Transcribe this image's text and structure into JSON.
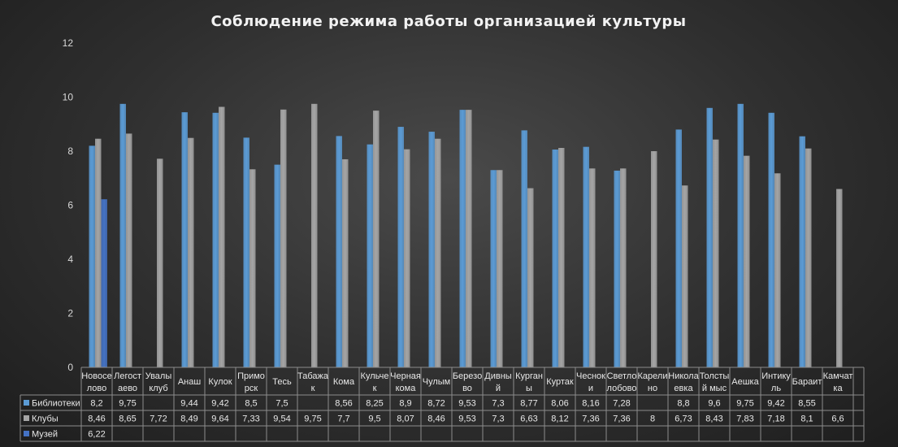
{
  "chart_data": {
    "type": "bar",
    "title": "Соблюдение режима работы организацией культуры",
    "ylim": [
      0,
      12
    ],
    "yticks": [
      "0",
      "2",
      "4",
      "6",
      "8",
      "10",
      "12"
    ],
    "grid": false,
    "legend": "data-table-left",
    "categories": [
      [
        "Новосе",
        "лово"
      ],
      [
        "Легост",
        "аево"
      ],
      [
        "Увалы",
        "клуб"
      ],
      [
        "Анаш"
      ],
      [
        "Кулок"
      ],
      [
        "Примо",
        "рск"
      ],
      [
        "Тесь"
      ],
      [
        "Табажа",
        "к"
      ],
      [
        "Кома"
      ],
      [
        "Кульче",
        "к"
      ],
      [
        "Черная",
        "кома"
      ],
      [
        "Чулым"
      ],
      [
        "Березо",
        "во"
      ],
      [
        "Дивны",
        "й"
      ],
      [
        "Курган",
        "ы"
      ],
      [
        "Куртак"
      ],
      [
        "Чеснок",
        "и"
      ],
      [
        "Светло",
        "лобово"
      ],
      [
        "Карели",
        "но"
      ],
      [
        "Никола",
        "евка"
      ],
      [
        "Толсты",
        "й мыс"
      ],
      [
        "Аешка"
      ],
      [
        "Интику",
        "ль"
      ],
      [
        "Бараит"
      ],
      [
        "Камчат",
        "ка"
      ]
    ],
    "series": [
      {
        "name": "Библиотеки",
        "color": "#5b9bd5",
        "values": [
          8.2,
          9.75,
          null,
          9.44,
          9.42,
          8.5,
          7.5,
          null,
          8.56,
          8.25,
          8.9,
          8.72,
          9.53,
          7.3,
          8.77,
          8.06,
          8.16,
          7.28,
          null,
          8.8,
          9.6,
          9.75,
          9.42,
          8.55,
          null
        ],
        "labels": [
          "8,2",
          "9,75",
          "",
          "9,44",
          "9,42",
          "8,5",
          "7,5",
          "",
          "8,56",
          "8,25",
          "8,9",
          "8,72",
          "9,53",
          "7,3",
          "8,77",
          "8,06",
          "8,16",
          "7,28",
          "",
          "8,8",
          "9,6",
          "9,75",
          "9,42",
          "8,55",
          ""
        ]
      },
      {
        "name": "Клубы",
        "color": "#a5a5a5",
        "values": [
          8.46,
          8.65,
          7.72,
          8.49,
          9.64,
          7.33,
          9.54,
          9.75,
          7.7,
          9.5,
          8.07,
          8.46,
          9.53,
          7.3,
          6.63,
          8.12,
          7.36,
          7.36,
          8,
          6.73,
          8.43,
          7.83,
          7.18,
          8.1,
          6.6
        ],
        "labels": [
          "8,46",
          "8,65",
          "7,72",
          "8,49",
          "9,64",
          "7,33",
          "9,54",
          "9,75",
          "7,7",
          "9,5",
          "8,07",
          "8,46",
          "9,53",
          "7,3",
          "6,63",
          "8,12",
          "7,36",
          "7,36",
          "8",
          "6,73",
          "8,43",
          "7,83",
          "7,18",
          "8,1",
          "6,6"
        ]
      },
      {
        "name": "Музей",
        "color": "#4472c4",
        "values": [
          6.22,
          null,
          null,
          null,
          null,
          null,
          null,
          null,
          null,
          null,
          null,
          null,
          null,
          null,
          null,
          null,
          null,
          null,
          null,
          null,
          null,
          null,
          null,
          null,
          null
        ],
        "labels": [
          "6,22",
          "",
          "",
          "",
          "",
          "",
          "",
          "",
          "",
          "",
          "",
          "",
          "",
          "",
          "",
          "",
          "",
          "",
          "",
          "",
          "",
          "",
          "",
          "",
          ""
        ]
      }
    ]
  }
}
